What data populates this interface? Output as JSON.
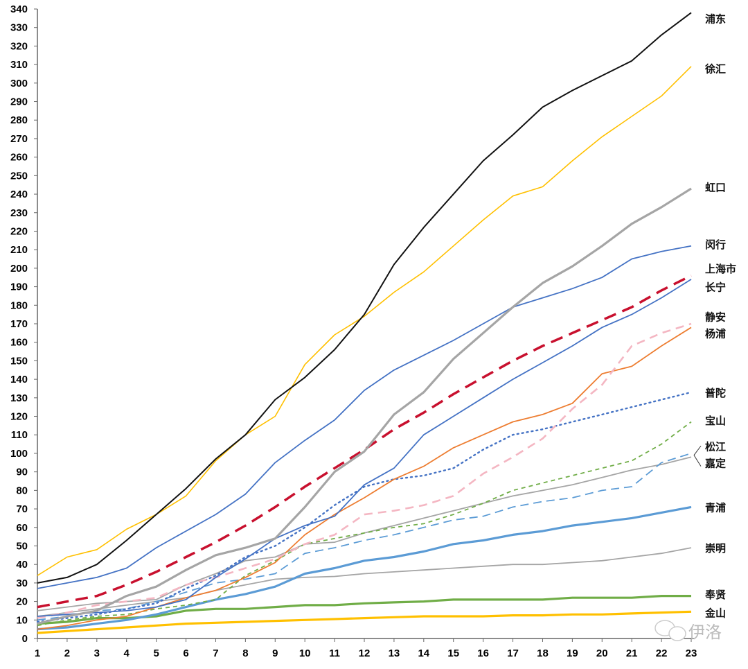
{
  "chart_data": {
    "type": "line",
    "title": "",
    "xlabel": "",
    "ylabel": "",
    "x": [
      1,
      2,
      3,
      4,
      5,
      6,
      7,
      8,
      9,
      10,
      11,
      12,
      13,
      14,
      15,
      16,
      17,
      18,
      19,
      20,
      21,
      22,
      23
    ],
    "xlim": [
      1,
      23
    ],
    "ylim": [
      0,
      340
    ],
    "ytick_step": 10,
    "grid": false,
    "legend": "direct labels at right end of lines",
    "series": [
      {
        "name": "浦东",
        "color": "#111111",
        "width": 2,
        "dash": "",
        "values": [
          30,
          33,
          40,
          53,
          67,
          81,
          97,
          110,
          129,
          141,
          156,
          175,
          202,
          222,
          240,
          258,
          272,
          287,
          296,
          304,
          312,
          326,
          338
        ]
      },
      {
        "name": "徐汇",
        "color": "#FFC000",
        "width": 1.6,
        "dash": "",
        "values": [
          34,
          44,
          48,
          59,
          67,
          77,
          96,
          110,
          120,
          148,
          164,
          174,
          187,
          198,
          212,
          226,
          239,
          244,
          258,
          271,
          282,
          293,
          309
        ]
      },
      {
        "name": "虹口",
        "color": "#A5A5A5",
        "width": 3.2,
        "dash": "",
        "values": [
          8,
          12,
          15,
          23,
          28,
          37,
          45,
          49,
          54,
          71,
          90,
          101,
          121,
          133,
          151,
          165,
          179,
          192,
          201,
          212,
          224,
          233,
          243
        ]
      },
      {
        "name": "闵行",
        "color": "#4472C4",
        "width": 1.8,
        "dash": "",
        "values": [
          27,
          30,
          33,
          38,
          49,
          58,
          67,
          78,
          95,
          107,
          118,
          134,
          145,
          153,
          161,
          170,
          179,
          184,
          189,
          195,
          205,
          209,
          212
        ]
      },
      {
        "name": "上海市",
        "color": "#C8102E",
        "width": 3.5,
        "dash": "18,10",
        "values": [
          17,
          20,
          23,
          29,
          36,
          44,
          52,
          61,
          71,
          82,
          92,
          102,
          113,
          122,
          132,
          141,
          150,
          158,
          165,
          172,
          179,
          188,
          196
        ]
      },
      {
        "name": "长宁",
        "color": "#4472C4",
        "width": 1.8,
        "dash": "",
        "values": [
          12,
          13,
          14,
          15,
          17,
          21,
          33,
          43,
          54,
          61,
          66,
          83,
          92,
          110,
          120,
          130,
          140,
          149,
          158,
          168,
          175,
          184,
          194
        ]
      },
      {
        "name": "静安",
        "color": "#F4B6C2",
        "width": 2.6,
        "dash": "12,8",
        "values": [
          11,
          14,
          18,
          20,
          22,
          29,
          33,
          38,
          43,
          51,
          56,
          67,
          69,
          72,
          77,
          89,
          98,
          108,
          124,
          137,
          158,
          165,
          170
        ]
      },
      {
        "name": "杨浦",
        "color": "#ED7D31",
        "width": 1.8,
        "dash": "",
        "values": [
          5,
          7,
          10,
          12,
          17,
          22,
          26,
          33,
          41,
          56,
          67,
          76,
          86,
          93,
          103,
          110,
          117,
          121,
          127,
          143,
          147,
          158,
          168
        ]
      },
      {
        "name": "普陀",
        "color": "#4472C4",
        "width": 2.4,
        "dash": "2,5",
        "values": [
          9,
          11,
          13,
          16,
          19,
          27,
          34,
          44,
          50,
          60,
          72,
          82,
          86,
          88,
          92,
          102,
          110,
          113,
          117,
          121,
          125,
          129,
          133
        ]
      },
      {
        "name": "宝山",
        "color": "#70AD47",
        "width": 1.8,
        "dash": "6,5",
        "values": [
          7,
          10,
          12,
          13,
          16,
          18,
          21,
          34,
          42,
          51,
          54,
          57,
          60,
          62,
          67,
          73,
          80,
          84,
          88,
          92,
          96,
          105,
          117
        ]
      },
      {
        "name": "松江",
        "color": "#5B9BD5",
        "width": 1.8,
        "dash": "12,7",
        "values": [
          10,
          12,
          15,
          16,
          20,
          25,
          30,
          32,
          35,
          46,
          49,
          53,
          56,
          60,
          64,
          66,
          71,
          74,
          76,
          80,
          82,
          95,
          100
        ]
      },
      {
        "name": "嘉定",
        "color": "#A5A5A5",
        "width": 1.8,
        "dash": "",
        "values": [
          15,
          17,
          19,
          20,
          21,
          29,
          35,
          42,
          44,
          51,
          52,
          57,
          61,
          65,
          69,
          73,
          77,
          80,
          83,
          87,
          91,
          94,
          98
        ]
      },
      {
        "name": "青浦",
        "color": "#5B9BD5",
        "width": 3.2,
        "dash": "",
        "values": [
          5,
          6,
          8,
          10,
          13,
          17,
          21,
          24,
          28,
          35,
          38,
          42,
          44,
          47,
          51,
          53,
          56,
          58,
          61,
          63,
          65,
          68,
          71
        ]
      },
      {
        "name": "崇明",
        "color": "#A5A5A5",
        "width": 1.8,
        "dash": "",
        "values": [
          12,
          14,
          16,
          18,
          20,
          22,
          26,
          29,
          32,
          33,
          33.5,
          35,
          36,
          37,
          38,
          39,
          40,
          40,
          41,
          42,
          44,
          46,
          49
        ]
      },
      {
        "name": "奉贤",
        "color": "#70AD47",
        "width": 3.2,
        "dash": "",
        "values": [
          8,
          9,
          11,
          11,
          12,
          15,
          16,
          16,
          17,
          18,
          18,
          19,
          19.5,
          20,
          21,
          21,
          21,
          21,
          22,
          22,
          22,
          23,
          23
        ]
      },
      {
        "name": "金山",
        "color": "#FFC000",
        "width": 3.2,
        "dash": "",
        "values": [
          3,
          4,
          5,
          6,
          7,
          8,
          8.5,
          9,
          9.5,
          10,
          10.5,
          11,
          11.5,
          12,
          12,
          12,
          12.5,
          12.5,
          13,
          13,
          13.5,
          14,
          14.5
        ]
      }
    ]
  },
  "watermark": {
    "text": "伊洛",
    "icon": "wechat-icon"
  }
}
